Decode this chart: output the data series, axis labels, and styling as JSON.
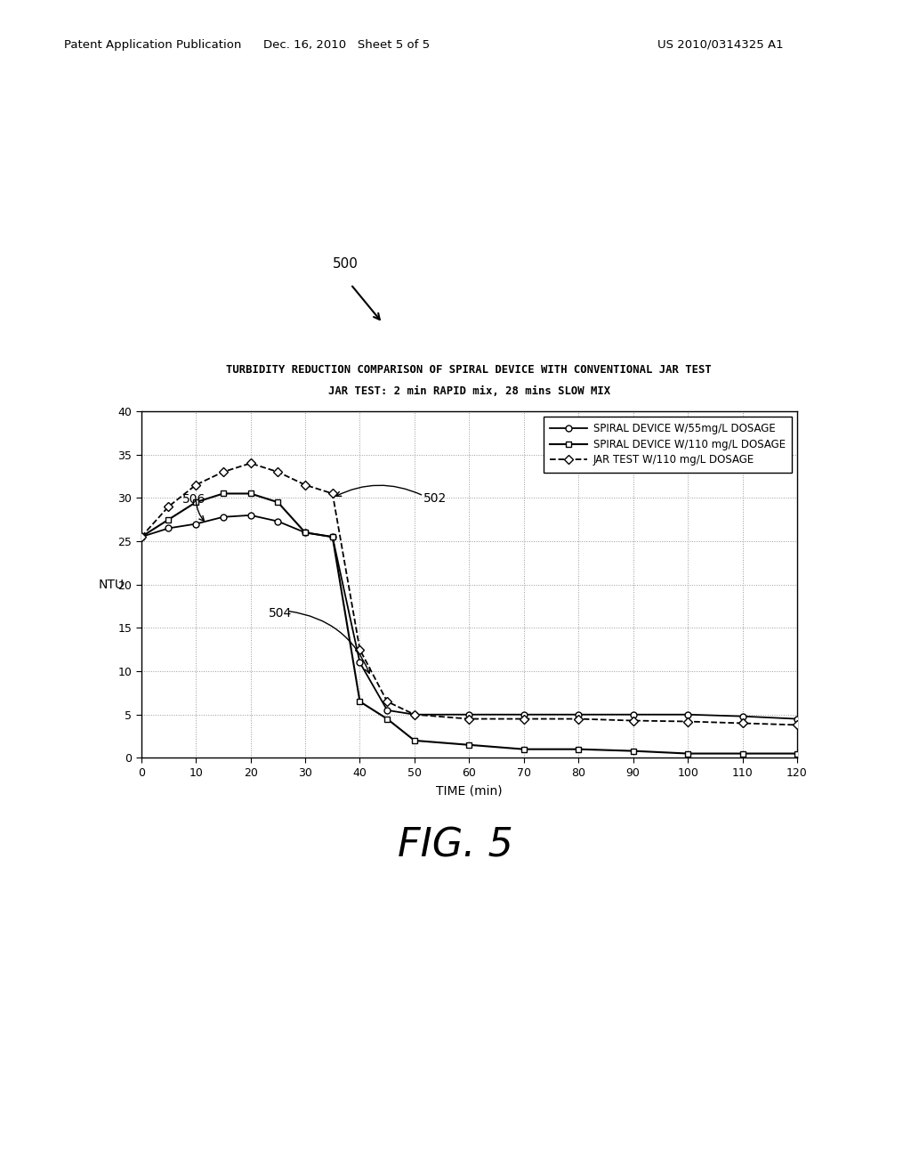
{
  "title_line1": "TURBIDITY REDUCTION COMPARISON OF SPIRAL DEVICE WITH CONVENTIONAL JAR TEST",
  "title_line2": "JAR TEST: 2 min RAPID mix, 28 mins SLOW MIX",
  "xlabel": "TIME (min)",
  "ylabel": "NTU",
  "fig_label": "FIG. 5",
  "patent_pub": "Patent Application Publication",
  "patent_date": "Dec. 16, 2010   Sheet 5 of 5",
  "patent_num": "US 2010/0314325 A1",
  "callout_500": "500",
  "callout_502": "502",
  "callout_504": "504",
  "callout_506": "506",
  "xlim": [
    0,
    120
  ],
  "ylim": [
    0,
    40
  ],
  "xticks": [
    0,
    10,
    20,
    30,
    40,
    50,
    60,
    70,
    80,
    90,
    100,
    110,
    120
  ],
  "yticks": [
    0,
    5,
    10,
    15,
    20,
    25,
    30,
    35,
    40
  ],
  "series1_label": "SPIRAL DEVICE W/55mg/L DOSAGE",
  "series2_label": "SPIRAL DEVICE W/110 mg/L DOSAGE",
  "series3_label": "JAR TEST W/110 mg/L DOSAGE",
  "series1_x": [
    0,
    5,
    10,
    15,
    20,
    25,
    30,
    35,
    40,
    45,
    50,
    60,
    70,
    80,
    90,
    100,
    110,
    120
  ],
  "series1_y": [
    25.5,
    26.5,
    27.0,
    27.8,
    28.0,
    27.3,
    26.0,
    25.5,
    11.0,
    5.5,
    5.0,
    5.0,
    5.0,
    5.0,
    5.0,
    5.0,
    4.8,
    4.5
  ],
  "series2_x": [
    0,
    5,
    10,
    15,
    20,
    25,
    30,
    35,
    40,
    45,
    50,
    60,
    70,
    80,
    90,
    100,
    110,
    120
  ],
  "series2_y": [
    25.5,
    27.5,
    29.5,
    30.5,
    30.5,
    29.5,
    26.0,
    25.5,
    6.5,
    4.5,
    2.0,
    1.5,
    1.0,
    1.0,
    0.8,
    0.5,
    0.5,
    0.5
  ],
  "series3_x": [
    0,
    5,
    10,
    15,
    20,
    25,
    30,
    35,
    40,
    45,
    50,
    60,
    70,
    80,
    90,
    100,
    110,
    120
  ],
  "series3_y": [
    25.5,
    29.0,
    31.5,
    33.0,
    34.0,
    33.0,
    31.5,
    30.5,
    12.5,
    6.5,
    5.0,
    4.5,
    4.5,
    4.5,
    4.3,
    4.2,
    4.0,
    3.8
  ],
  "background_color": "#ffffff",
  "line_color": "#000000",
  "grid_color": "#999999"
}
